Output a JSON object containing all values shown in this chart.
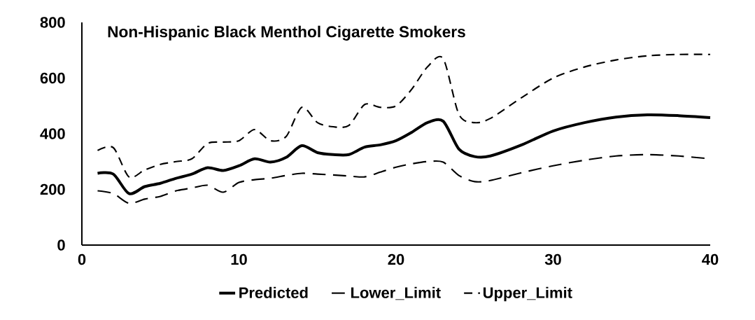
{
  "chart_data": {
    "type": "line",
    "title": "Non-Hispanic Black Menthol Cigarette Smokers",
    "x": [
      1,
      2,
      3,
      4,
      5,
      6,
      7,
      8,
      9,
      10,
      11,
      12,
      13,
      14,
      15,
      16,
      17,
      18,
      19,
      20,
      21,
      22,
      23,
      24,
      25,
      26,
      28,
      30,
      32,
      34,
      36,
      38,
      40
    ],
    "series": [
      {
        "name": "Predicted",
        "color": "#000000",
        "line_style": "solid",
        "values": [
          258,
          255,
          185,
          210,
          222,
          240,
          255,
          278,
          268,
          285,
          310,
          298,
          315,
          357,
          332,
          325,
          325,
          352,
          360,
          375,
          405,
          440,
          445,
          345,
          318,
          320,
          360,
          410,
          440,
          460,
          468,
          465,
          458
        ]
      },
      {
        "name": "Lower_Limit",
        "color": "#000000",
        "line_style": "dashed",
        "values": [
          195,
          185,
          150,
          165,
          175,
          195,
          205,
          215,
          190,
          225,
          235,
          240,
          250,
          258,
          255,
          252,
          248,
          245,
          262,
          280,
          292,
          300,
          298,
          250,
          228,
          232,
          260,
          285,
          305,
          320,
          325,
          320,
          310
        ]
      },
      {
        "name": "Upper_Limit",
        "color": "#000000",
        "line_style": "dashed",
        "values": [
          340,
          350,
          245,
          270,
          290,
          300,
          310,
          365,
          370,
          375,
          415,
          375,
          390,
          495,
          440,
          425,
          430,
          505,
          495,
          500,
          560,
          640,
          670,
          470,
          440,
          455,
          530,
          600,
          640,
          665,
          680,
          685,
          685
        ]
      }
    ],
    "xlim": [
      0,
      40
    ],
    "xticks": [
      0,
      10,
      20,
      30,
      40
    ],
    "ylim": [
      0,
      800
    ],
    "yticks": [
      0,
      200,
      400,
      600,
      800
    ],
    "grid": false,
    "legend": "bottom",
    "marker": "none"
  }
}
